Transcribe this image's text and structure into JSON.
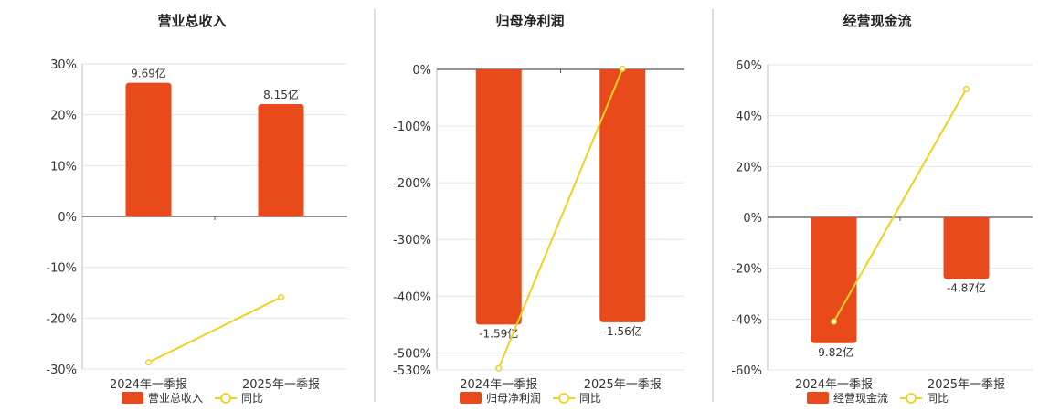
{
  "colors": {
    "bar": "#e84a1b",
    "line": "#f0d21e",
    "grid": "#e6e6e6",
    "axis": "#555555",
    "divider": "#bbbbbb"
  },
  "chart_data": [
    {
      "type": "bar",
      "title": "营业总收入",
      "categories": [
        "2024年一季报",
        "2025年一季报"
      ],
      "series": [
        {
          "name": "营业总收入",
          "type": "bar",
          "values": [
            26.3,
            22.1
          ],
          "labels": [
            "9.69亿",
            "8.15亿"
          ]
        },
        {
          "name": "同比",
          "type": "line",
          "values": [
            -28.7,
            -15.9
          ]
        }
      ],
      "y_ticks": [
        "30%",
        "20%",
        "10%",
        "0%",
        "-10%",
        "-20%",
        "-30%"
      ],
      "ylim": [
        -30,
        30
      ]
    },
    {
      "type": "bar",
      "title": "归母净利润",
      "categories": [
        "2024年一季报",
        "2025年一季报"
      ],
      "series": [
        {
          "name": "归母净利润",
          "type": "bar",
          "values": [
            -450,
            -446
          ],
          "labels": [
            "-1.59亿",
            "-1.56亿"
          ]
        },
        {
          "name": "同比",
          "type": "line",
          "values": [
            -527,
            1
          ]
        }
      ],
      "y_ticks": [
        "0%",
        "-100%",
        "-200%",
        "-300%",
        "-400%",
        "-500%",
        "-530%"
      ],
      "ylim": [
        -530,
        0
      ]
    },
    {
      "type": "bar",
      "title": "经营现金流",
      "categories": [
        "2024年一季报",
        "2025年一季报"
      ],
      "series": [
        {
          "name": "经营现金流",
          "type": "bar",
          "values": [
            -49.5,
            -24.3
          ],
          "labels": [
            "-9.82亿",
            "-4.87亿"
          ]
        },
        {
          "name": "同比",
          "type": "line",
          "values": [
            -41,
            50.5
          ]
        }
      ],
      "y_ticks": [
        "60%",
        "40%",
        "20%",
        "0%",
        "-20%",
        "-40%",
        "-60%"
      ],
      "ylim": [
        -60,
        60
      ]
    }
  ]
}
